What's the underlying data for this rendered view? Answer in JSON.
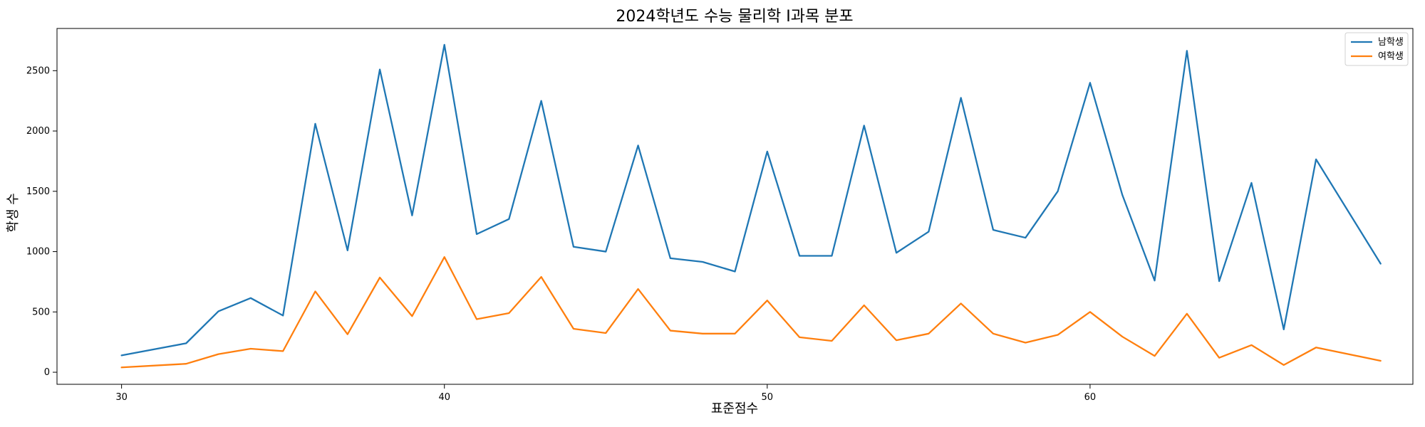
{
  "chart_data": {
    "type": "line",
    "title": "2024학년도 수능 물리학 I과목 분포",
    "xlabel": "표준점수",
    "ylabel": "학생 수",
    "xlim": [
      28,
      70
    ],
    "ylim": [
      -100,
      2850
    ],
    "x_ticks": [
      30,
      40,
      50,
      60
    ],
    "y_ticks": [
      0,
      500,
      1000,
      1500,
      2000,
      2500
    ],
    "grid": false,
    "legend_position": "top-right",
    "series": [
      {
        "name": "남학생",
        "color": "#1f77b4",
        "points": [
          [
            30,
            140
          ],
          [
            32,
            240
          ],
          [
            33,
            505
          ],
          [
            34,
            615
          ],
          [
            35,
            470
          ],
          [
            36,
            2060
          ],
          [
            37,
            1010
          ],
          [
            38,
            2510
          ],
          [
            39,
            1300
          ],
          [
            40,
            2715
          ],
          [
            41,
            1145
          ],
          [
            42,
            1270
          ],
          [
            43,
            2250
          ],
          [
            44,
            1040
          ],
          [
            45,
            1000
          ],
          [
            46,
            1880
          ],
          [
            47,
            945
          ],
          [
            48,
            915
          ],
          [
            49,
            835
          ],
          [
            50,
            1830
          ],
          [
            51,
            965
          ],
          [
            52,
            965
          ],
          [
            53,
            2045
          ],
          [
            54,
            990
          ],
          [
            55,
            1165
          ],
          [
            56,
            2275
          ],
          [
            57,
            1180
          ],
          [
            58,
            1115
          ],
          [
            59,
            1500
          ],
          [
            60,
            2400
          ],
          [
            61,
            1470
          ],
          [
            62,
            760
          ],
          [
            63,
            2665
          ],
          [
            64,
            755
          ],
          [
            65,
            1570
          ],
          [
            66,
            355
          ],
          [
            67,
            1765
          ],
          [
            69,
            900
          ]
        ]
      },
      {
        "name": "여학생",
        "color": "#ff7f0e",
        "points": [
          [
            30,
            40
          ],
          [
            32,
            70
          ],
          [
            33,
            150
          ],
          [
            34,
            195
          ],
          [
            35,
            175
          ],
          [
            36,
            670
          ],
          [
            37,
            315
          ],
          [
            38,
            785
          ],
          [
            39,
            465
          ],
          [
            40,
            955
          ],
          [
            41,
            440
          ],
          [
            42,
            490
          ],
          [
            43,
            790
          ],
          [
            44,
            360
          ],
          [
            45,
            325
          ],
          [
            46,
            690
          ],
          [
            47,
            345
          ],
          [
            48,
            320
          ],
          [
            49,
            320
          ],
          [
            50,
            595
          ],
          [
            51,
            290
          ],
          [
            52,
            260
          ],
          [
            53,
            555
          ],
          [
            54,
            265
          ],
          [
            55,
            320
          ],
          [
            56,
            570
          ],
          [
            57,
            320
          ],
          [
            58,
            245
          ],
          [
            59,
            310
          ],
          [
            60,
            500
          ],
          [
            61,
            295
          ],
          [
            62,
            135
          ],
          [
            63,
            485
          ],
          [
            64,
            120
          ],
          [
            65,
            225
          ],
          [
            66,
            60
          ],
          [
            67,
            205
          ],
          [
            69,
            95
          ]
        ]
      }
    ]
  }
}
